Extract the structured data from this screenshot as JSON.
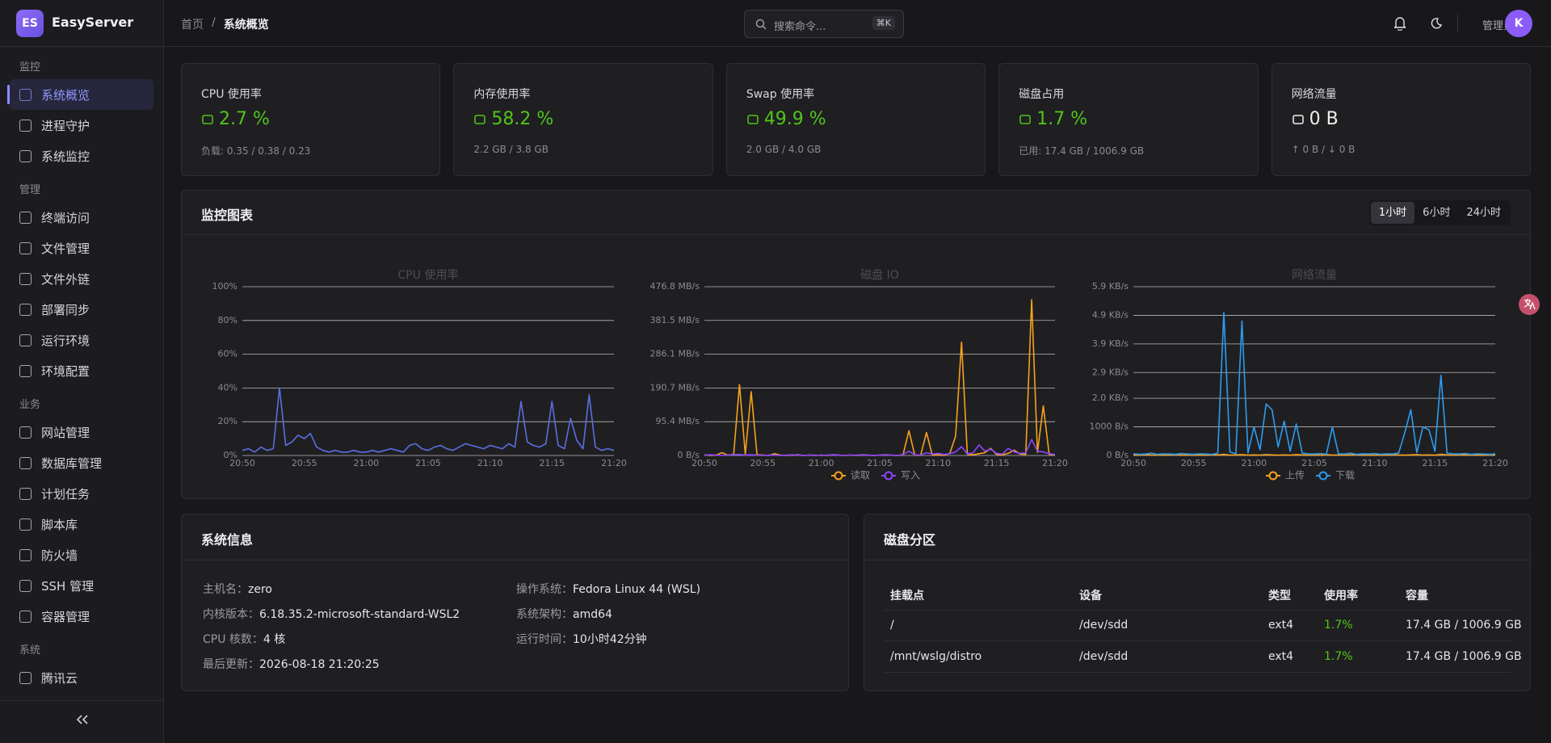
{
  "sidebar": {
    "logo": "ES",
    "brand": "EasyServer",
    "groups": [
      {
        "title": "监控",
        "items": [
          "系统概览",
          "进程守护",
          "系统监控"
        ]
      },
      {
        "title": "管理",
        "items": [
          "终端访问",
          "文件管理",
          "文件外链",
          "部署同步",
          "运行环境",
          "环境配置"
        ]
      },
      {
        "title": "业务",
        "items": [
          "网站管理",
          "数据库管理",
          "计划任务",
          "脚本库",
          "防火墙",
          "SSH 管理",
          "容器管理"
        ]
      },
      {
        "title": "系统",
        "items": [
          "腾讯云"
        ]
      }
    ]
  },
  "header": {
    "breadcrumb": [
      "首页",
      "系统概览"
    ],
    "breadcrumb_separator": "/",
    "search": "搜索命令...",
    "shortcut": "⌘K",
    "user": "管理员",
    "avatar": "K"
  },
  "stats": [
    {
      "label": "CPU 使用率",
      "value": "2.7 %",
      "detail": "负载: 0.35 / 0.38 / 0.23",
      "color": "#52c41a"
    },
    {
      "label": "内存使用率",
      "value": "58.2 %",
      "detail": "2.2 GB / 3.8 GB",
      "color": "#52c41a"
    },
    {
      "label": "Swap 使用率",
      "value": "49.9 %",
      "detail": "2.0 GB / 4.0 GB",
      "color": "#52c41a"
    },
    {
      "label": "磁盘占用",
      "value": "1.7 %",
      "detail": "已用: 17.4 GB / 1006.9 GB",
      "color": "#52c41a"
    },
    {
      "label": "网络流量",
      "value": "0 B",
      "detail": "↑ 0 B / ↓ 0 B",
      "color": "#f0f0f0"
    }
  ],
  "monitor": {
    "title": "监控图表",
    "ranges": [
      "1小时",
      "6小时",
      "24小时"
    ],
    "charts": [
      {
        "type": "line",
        "title": "CPU 使用率",
        "grid": true,
        "x_labels": [
          "20:50",
          "20:55",
          "21:00",
          "21:05",
          "21:10",
          "21:15",
          "21:20"
        ],
        "ylim": [
          0,
          100
        ],
        "yticks": [
          {
            "value": 0,
            "label": "0%"
          },
          {
            "value": 20,
            "label": "20%"
          },
          {
            "value": 40,
            "label": "40%"
          },
          {
            "value": 60,
            "label": "60%"
          },
          {
            "value": 80,
            "label": "80%"
          },
          {
            "value": 100,
            "label": "100%"
          }
        ],
        "series": [
          {
            "color": "#5b6ee1",
            "values": [
              3,
              4,
              2,
              5,
              3,
              4,
              40,
              6,
              8,
              12,
              10,
              13,
              5,
              3,
              2,
              3,
              2,
              2,
              3,
              2,
              2,
              3,
              2,
              3,
              4,
              3,
              2,
              6,
              7,
              4,
              3,
              5,
              6,
              4,
              3,
              5,
              7,
              6,
              5,
              4,
              6,
              5,
              4,
              7,
              5,
              32,
              8,
              6,
              5,
              7,
              32,
              6,
              4,
              22,
              9,
              4,
              36,
              5,
              3,
              4,
              3
            ]
          }
        ]
      },
      {
        "type": "line",
        "title": "磁盘 IO",
        "grid": true,
        "x_labels": [
          "20:50",
          "20:55",
          "21:00",
          "21:05",
          "21:10",
          "21:15",
          "21:20"
        ],
        "ylim": [
          0,
          476.8
        ],
        "yticks": [
          {
            "value": 0,
            "label": "0 B/s"
          },
          {
            "value": 95.4,
            "label": "95.4 MB/s"
          },
          {
            "value": 190.7,
            "label": "190.7 MB/s"
          },
          {
            "value": 286.1,
            "label": "286.1 MB/s"
          },
          {
            "value": 381.5,
            "label": "381.5 MB/s"
          },
          {
            "value": 476.8,
            "label": "476.8 MB/s"
          }
        ],
        "series": [
          {
            "name": "读取",
            "color": "#f7a21b",
            "values": [
              2,
              0,
              1,
              8,
              1,
              3,
              200,
              4,
              180,
              2,
              1,
              0,
              5,
              1,
              0,
              1,
              2,
              0,
              1,
              0,
              1,
              0,
              2,
              1,
              0,
              1,
              0,
              2,
              1,
              0,
              1,
              2,
              1,
              0,
              2,
              70,
              1,
              0,
              65,
              1,
              2,
              0,
              6,
              55,
              320,
              3,
              2,
              5,
              8,
              20,
              3,
              2,
              6,
              15,
              4,
              3,
              440,
              9,
              140,
              3,
              2
            ]
          },
          {
            "name": "写入",
            "color": "#8e44ff",
            "values": [
              1,
              2,
              1,
              0,
              1,
              2,
              3,
              1,
              2,
              1,
              0,
              1,
              1,
              0,
              1,
              2,
              1,
              0,
              1,
              1,
              0,
              1,
              2,
              1,
              0,
              1,
              1,
              2,
              1,
              0,
              1,
              2,
              1,
              0,
              3,
              12,
              2,
              1,
              8,
              4,
              6,
              3,
              5,
              10,
              25,
              4,
              8,
              30,
              12,
              18,
              6,
              4,
              20,
              10,
              6,
              8,
              45,
              12,
              10,
              5,
              3
            ]
          }
        ]
      },
      {
        "type": "line",
        "title": "网络流量",
        "grid": true,
        "x_labels": [
          "20:50",
          "20:55",
          "21:00",
          "21:05",
          "21:10",
          "21:15",
          "21:20"
        ],
        "ylim": [
          0,
          5900
        ],
        "yticks": [
          {
            "value": 0,
            "label": "0 B/s"
          },
          {
            "value": 1000,
            "label": "1000 B/s"
          },
          {
            "value": 2000,
            "label": "2.0 KB/s"
          },
          {
            "value": 2900,
            "label": "2.9 KB/s"
          },
          {
            "value": 3900,
            "label": "3.9 KB/s"
          },
          {
            "value": 4900,
            "label": "4.9 KB/s"
          },
          {
            "value": 5900,
            "label": "5.9 KB/s"
          }
        ],
        "series": [
          {
            "name": "上传",
            "color": "#f7a21b",
            "values": [
              20,
              10,
              30,
              10,
              20,
              10,
              20,
              30,
              10,
              20,
              10,
              20,
              10,
              30,
              20,
              40,
              10,
              20,
              30,
              10,
              20,
              10,
              30,
              20,
              10,
              20,
              10,
              30,
              20,
              10,
              20,
              10,
              30,
              10,
              20,
              10,
              20,
              30,
              10,
              20,
              10,
              20,
              10,
              30,
              20,
              10,
              20,
              30,
              10,
              20,
              10,
              40,
              20,
              10,
              30,
              20,
              10,
              20,
              10,
              30,
              20
            ]
          },
          {
            "name": "下载",
            "color": "#2d9cf0",
            "values": [
              60,
              40,
              50,
              80,
              40,
              60,
              50,
              40,
              70,
              50,
              40,
              60,
              50,
              40,
              80,
              5000,
              120,
              60,
              4700,
              90,
              1000,
              200,
              1800,
              1600,
              300,
              1200,
              150,
              1100,
              80,
              60,
              50,
              70,
              40,
              1000,
              60,
              50,
              80,
              40,
              60,
              50,
              70,
              40,
              60,
              50,
              90,
              800,
              1600,
              100,
              1000,
              900,
              150,
              2800,
              80,
              60,
              50,
              70,
              40,
              60,
              50,
              40,
              60
            ]
          }
        ]
      }
    ]
  },
  "system_info": {
    "title": "系统信息",
    "fields": [
      {
        "label": "主机名：",
        "value": "zero"
      },
      {
        "label": "内核版本：",
        "value": "6.18.35.2-microsoft-standard-WSL2"
      },
      {
        "label": "CPU 核数：",
        "value": "4 核"
      },
      {
        "label": "最后更新：",
        "value": "2026-08-18 21:20:25"
      },
      {
        "label": "操作系统：",
        "value": "Fedora Linux 44 (WSL)"
      },
      {
        "label": "系统架构：",
        "value": "amd64"
      },
      {
        "label": "运行时间：",
        "value": "10小时42分钟"
      }
    ]
  },
  "disks": {
    "title": "磁盘分区",
    "columns": [
      "挂载点",
      "设备",
      "类型",
      "使用率",
      "容量"
    ],
    "rows": [
      [
        "/",
        "/dev/sdd",
        "ext4",
        "1.7%",
        "17.4 GB / 1006.9 GB"
      ],
      [
        "/mnt/wslg/distro",
        "/dev/sdd",
        "ext4",
        "1.7%",
        "17.4 GB / 1006.9 GB"
      ]
    ]
  }
}
